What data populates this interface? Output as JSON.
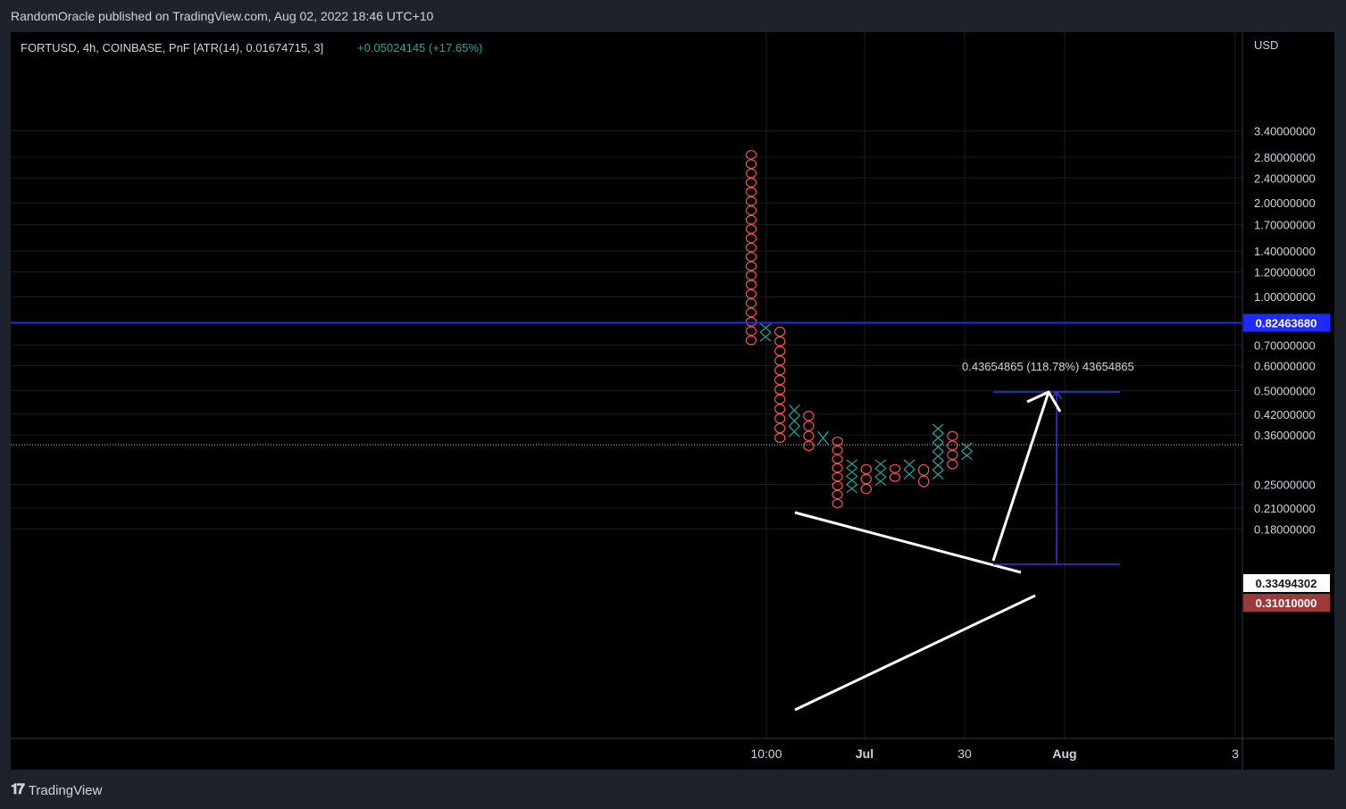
{
  "header": {
    "publisher_line": "RandomOracle published on TradingView.com, Aug 02, 2022 18:46 UTC+10"
  },
  "legend": {
    "symbol_line": "FORTUSD, 4h, COINBASE, PnF [ATR(14), 0.01674715, 3]",
    "change": "+0.05024145 (+17.65%)",
    "change_color": "#26a69a"
  },
  "footer": {
    "brand": "TradingView",
    "logo_icon": "tradingview-logo-icon"
  },
  "chart_data": {
    "type": "point-and-figure",
    "symbol": "FORTUSD",
    "currency": "USD",
    "yscale": "log",
    "ylim": [
      0.165,
      3.6
    ],
    "y_ticks": [
      "3.40000000",
      "2.80000000",
      "2.40000000",
      "2.00000000",
      "1.70000000",
      "1.40000000",
      "1.20000000",
      "1.00000000",
      "0.70000000",
      "0.60000000",
      "0.50000000",
      "0.42000000",
      "0.36000000",
      "0.25000000",
      "0.21000000",
      "0.18000000"
    ],
    "x_ticks": [
      "10:00",
      "Jul",
      "30",
      "Aug",
      "3"
    ],
    "columns": [
      {
        "type": "O",
        "high": 2.95,
        "low": 0.7
      },
      {
        "type": "X",
        "low": 0.72,
        "high": 0.82
      },
      {
        "type": "O",
        "high": 0.8,
        "low": 0.34
      },
      {
        "type": "X",
        "low": 0.355,
        "high": 0.45
      },
      {
        "type": "O",
        "high": 0.43,
        "low": 0.32
      },
      {
        "type": "X",
        "low": 0.335,
        "high": 0.37
      },
      {
        "type": "O",
        "high": 0.355,
        "low": 0.21
      },
      {
        "type": "X",
        "low": 0.235,
        "high": 0.3
      },
      {
        "type": "O",
        "high": 0.29,
        "low": 0.233
      },
      {
        "type": "X",
        "low": 0.248,
        "high": 0.3
      },
      {
        "type": "O",
        "high": 0.29,
        "low": 0.255
      },
      {
        "type": "X",
        "low": 0.26,
        "high": 0.3
      },
      {
        "type": "O",
        "high": 0.29,
        "low": 0.245
      },
      {
        "type": "X",
        "low": 0.26,
        "high": 0.39
      },
      {
        "type": "O",
        "high": 0.37,
        "low": 0.28
      },
      {
        "type": "X",
        "low": 0.3,
        "high": 0.34
      }
    ],
    "price_lines": [
      {
        "label": "0.82463680",
        "value": 0.8246368,
        "style": "solid",
        "color": "#1e2bff",
        "label_bg": "#1e2bff"
      },
      {
        "label": "0.33494302",
        "value": 0.33494302,
        "style": "dotted",
        "color": "#c8c8c8",
        "label_bg": "#ffffff"
      },
      {
        "label": "0.31010000",
        "value": 0.3101,
        "style": "none",
        "label_bg": "#9c3a3a"
      }
    ],
    "measure_label": "0.43654865 (118.78%) 43654865",
    "colors": {
      "x": "#26a69a",
      "o": "#ef5350",
      "trendline": "#ffffff",
      "measure": "#2f3bd8"
    }
  }
}
